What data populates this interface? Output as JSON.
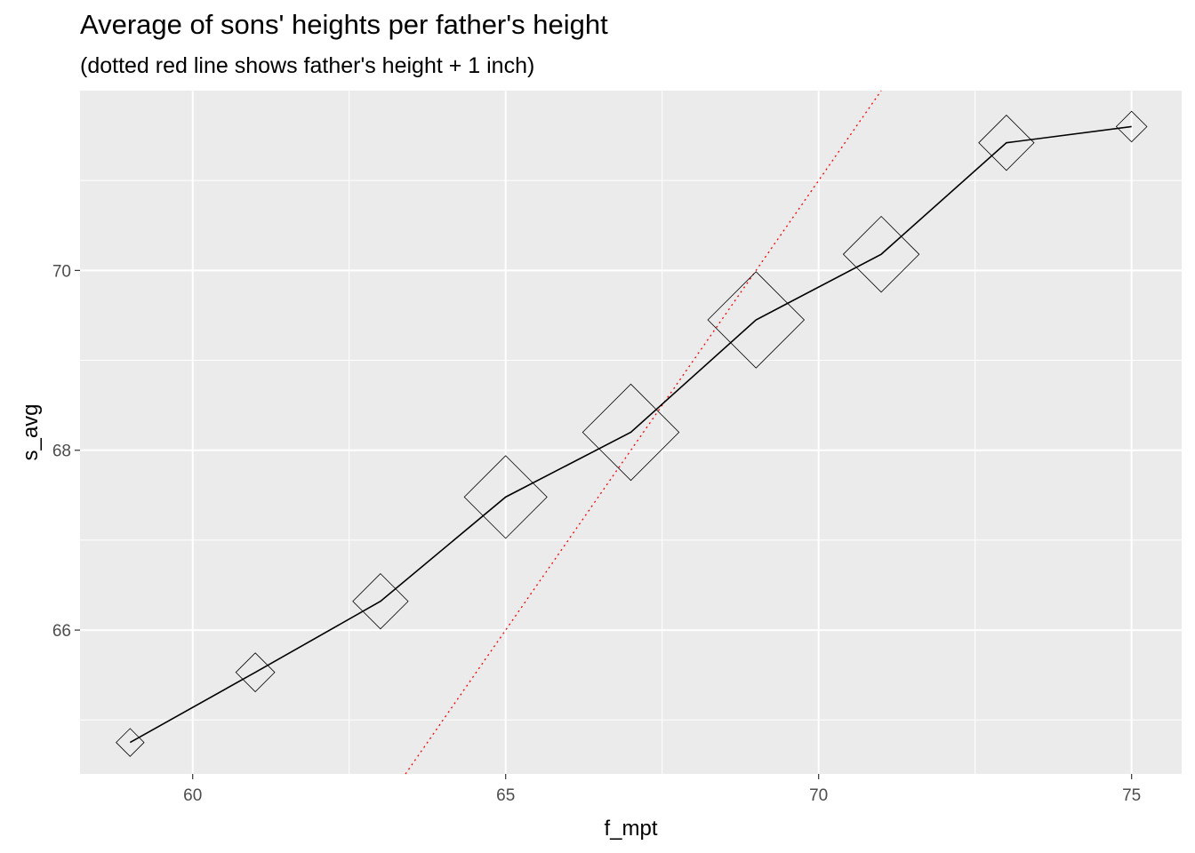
{
  "chart_data": {
    "type": "line",
    "title": "Average of sons' heights per father's height",
    "subtitle": "(dotted red line shows father's height + 1 inch)",
    "xlabel": "f_mpt",
    "ylabel": "s_avg",
    "xlim": [
      58.2,
      75.8
    ],
    "ylim": [
      64.4,
      72.0
    ],
    "x_ticks": [
      60,
      65,
      70,
      75
    ],
    "y_ticks": [
      66,
      68,
      70
    ],
    "grid": true,
    "series": [
      {
        "values": [
          {
            "x": 59,
            "y": 64.75,
            "size": 1.0
          },
          {
            "x": 61,
            "y": 65.53,
            "size": 1.8
          },
          {
            "x": 63,
            "y": 66.32,
            "size": 3.0
          },
          {
            "x": 65,
            "y": 67.48,
            "size": 5.0
          },
          {
            "x": 67,
            "y": 68.2,
            "size": 6.0
          },
          {
            "x": 69,
            "y": 69.45,
            "size": 6.0
          },
          {
            "x": 71,
            "y": 70.18,
            "size": 4.5
          },
          {
            "x": 73,
            "y": 71.42,
            "size": 3.0
          },
          {
            "x": 75,
            "y": 71.6,
            "size": 1.2
          }
        ]
      }
    ],
    "reference_line": {
      "slope": 1,
      "intercept": 1,
      "style": "dotted",
      "color": "#ff0000"
    },
    "colors": {
      "panel": "#ebebeb",
      "grid": "#ffffff",
      "line": "#000000",
      "marker": "#000000"
    }
  }
}
